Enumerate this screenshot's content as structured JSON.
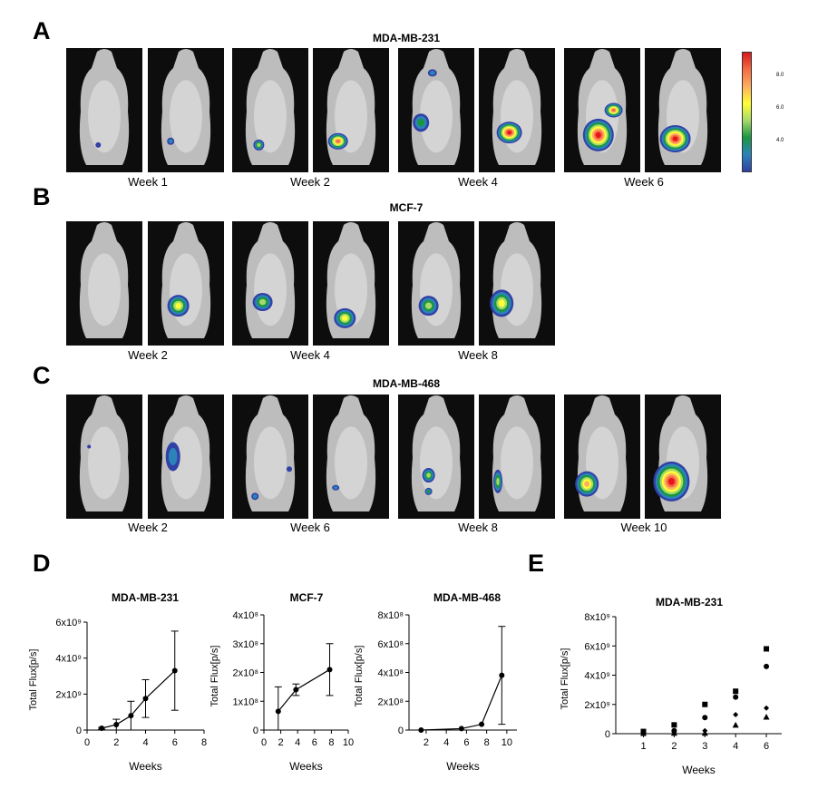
{
  "panels": {
    "A": {
      "letter": "A",
      "title": "MDA-MB-231",
      "weeks": [
        "Week 1",
        "Week 2",
        "Week 4",
        "Week 6"
      ]
    },
    "B": {
      "letter": "B",
      "title": "MCF-7",
      "weeks": [
        "Week 2",
        "Week 4",
        "Week 8"
      ]
    },
    "C": {
      "letter": "C",
      "title": "MDA-MB-468",
      "weeks": [
        "Week 2",
        "Week 6",
        "Week 8",
        "Week 10"
      ]
    },
    "D": {
      "letter": "D"
    },
    "E": {
      "letter": "E"
    }
  },
  "colorbar": {
    "ticks": [
      "8.0",
      "6.0",
      "4.0"
    ],
    "colors": [
      "#d7191c",
      "#f46d43",
      "#fdae61",
      "#ffff33",
      "#a6d96a",
      "#1a9641",
      "#2b83ba",
      "#3140a5"
    ]
  },
  "chart_data": [
    {
      "type": "line",
      "title": "MDA-MB-231",
      "xlabel": "Weeks",
      "ylabel": "Total Flux[p/s]",
      "xticks": [
        "0",
        "2",
        "4",
        "6",
        "8"
      ],
      "xlim": [
        0,
        8
      ],
      "yticks": [
        "0",
        "2x10⁹",
        "4x10⁹",
        "6x10⁹"
      ],
      "ylim": [
        0,
        6000000000.0
      ],
      "x": [
        1,
        2,
        3,
        4,
        6
      ],
      "y": [
        100000000.0,
        300000000.0,
        800000000.0,
        1750000000.0,
        3300000000.0
      ],
      "err": [
        50000000.0,
        300000000.0,
        800000000.0,
        1050000000.0,
        2200000000.0
      ]
    },
    {
      "type": "line",
      "title": "MCF-7",
      "xlabel": "Weeks",
      "ylabel": "Total Flux[p/s]",
      "xticks": [
        "0",
        "2",
        "4",
        "6",
        "8",
        "10"
      ],
      "xlim": [
        0,
        10
      ],
      "yticks": [
        "0",
        "1x10⁸",
        "2x10⁸",
        "3x10⁸",
        "4x10⁸"
      ],
      "ylim": [
        0,
        400000000.0
      ],
      "x": [
        1.7,
        3.8,
        7.8
      ],
      "y": [
        65000000.0,
        140000000.0,
        210000000.0
      ],
      "err": [
        85000000.0,
        20000000.0,
        90000000.0
      ]
    },
    {
      "type": "line",
      "title": "MDA-MB-468",
      "xlabel": "Weeks",
      "ylabel": "Total Flux[p/s]",
      "xticks": [
        "2",
        "4",
        "6",
        "8",
        "10"
      ],
      "xlim": [
        0.3,
        11
      ],
      "yticks": [
        "0",
        "2x10⁸",
        "4x10⁸",
        "6x10⁸",
        "8x10⁸"
      ],
      "ylim": [
        0,
        800000000.0
      ],
      "x": [
        1.5,
        5.5,
        7.5,
        9.5
      ],
      "y": [
        0.0,
        10000000.0,
        40000000.0,
        380000000.0
      ],
      "err": [
        0,
        0,
        0,
        340000000.0
      ]
    },
    {
      "type": "scatter",
      "title": "MDA-MB-231",
      "xlabel": "Weeks",
      "ylabel": "Total Flux[p/s]",
      "categories": [
        "1",
        "2",
        "3",
        "4",
        "6"
      ],
      "yticks": [
        "0",
        "2x10⁹",
        "4x10⁹",
        "6x10⁹",
        "8x10⁹"
      ],
      "ylim": [
        0,
        8000000000.0
      ],
      "series": [
        {
          "marker": "square",
          "values": [
            150000000.0,
            600000000.0,
            2000000000.0,
            2900000000.0,
            5800000000.0
          ]
        },
        {
          "marker": "circle",
          "values": [
            50000000.0,
            200000000.0,
            1100000000.0,
            2500000000.0,
            4600000000.0
          ]
        },
        {
          "marker": "diamond",
          "values": [
            50000000.0,
            100000000.0,
            200000000.0,
            1300000000.0,
            1750000000.0
          ]
        },
        {
          "marker": "triangle",
          "values": [
            30000000.0,
            50000000.0,
            50000000.0,
            600000000.0,
            1150000000.0
          ]
        }
      ]
    }
  ]
}
